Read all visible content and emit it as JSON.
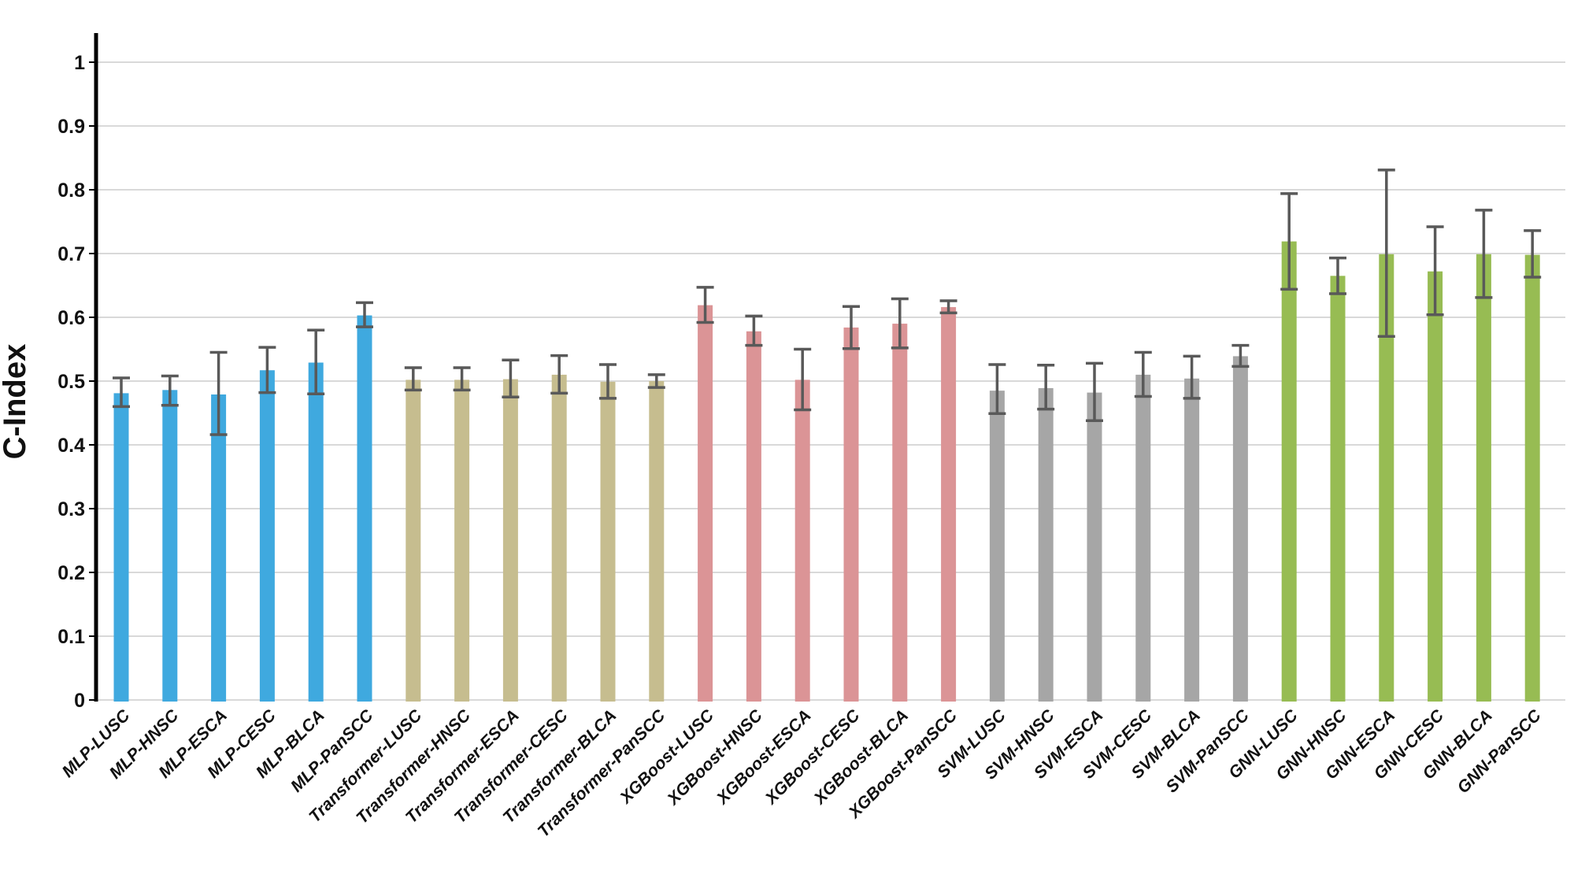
{
  "chart_data": {
    "type": "bar",
    "title": "",
    "ylabel": "C-Index",
    "xlabel": "",
    "ylim": [
      0,
      1.0
    ],
    "ytick_step": 0.1,
    "ytick_labels": [
      "0",
      "0.1",
      "0.2",
      "0.3",
      "0.4",
      "0.5",
      "0.6",
      "0.7",
      "0.8",
      "0.9",
      "1"
    ],
    "grid": true,
    "legend": "none",
    "error_bars": true,
    "colors": {
      "grid_line": "#d9d9d9",
      "axis_line": "#000000",
      "error_bar": "#595959",
      "label_text": "#111111"
    },
    "groups": [
      {
        "name": "MLP",
        "color": "#3fa9df",
        "bars": [
          {
            "label": "MLP-LUSC",
            "value": 0.481,
            "err_low": 0.46,
            "err_high": 0.505
          },
          {
            "label": "MLP-HNSC",
            "value": 0.486,
            "err_low": 0.462,
            "err_high": 0.508
          },
          {
            "label": "MLP-ESCA",
            "value": 0.479,
            "err_low": 0.416,
            "err_high": 0.545
          },
          {
            "label": "MLP-CESC",
            "value": 0.517,
            "err_low": 0.482,
            "err_high": 0.553
          },
          {
            "label": "MLP-BLCA",
            "value": 0.529,
            "err_low": 0.48,
            "err_high": 0.58
          },
          {
            "label": "MLP-PanSCC",
            "value": 0.603,
            "err_low": 0.585,
            "err_high": 0.623
          }
        ]
      },
      {
        "name": "Transformer",
        "color": "#c6bd8f",
        "bars": [
          {
            "label": "Transformer-LUSC",
            "value": 0.502,
            "err_low": 0.486,
            "err_high": 0.521
          },
          {
            "label": "Transformer-HNSC",
            "value": 0.502,
            "err_low": 0.486,
            "err_high": 0.521
          },
          {
            "label": "Transformer-ESCA",
            "value": 0.503,
            "err_low": 0.475,
            "err_high": 0.533
          },
          {
            "label": "Transformer-CESC",
            "value": 0.51,
            "err_low": 0.481,
            "err_high": 0.54
          },
          {
            "label": "Transformer-BLCA",
            "value": 0.499,
            "err_low": 0.473,
            "err_high": 0.526
          },
          {
            "label": "Transformer-PanSCC",
            "value": 0.5,
            "err_low": 0.49,
            "err_high": 0.51
          }
        ]
      },
      {
        "name": "XGBoost",
        "color": "#db9496",
        "bars": [
          {
            "label": "XGBoost-LUSC",
            "value": 0.619,
            "err_low": 0.592,
            "err_high": 0.647
          },
          {
            "label": "XGBoost-HNSC",
            "value": 0.578,
            "err_low": 0.556,
            "err_high": 0.602
          },
          {
            "label": "XGBoost-ESCA",
            "value": 0.502,
            "err_low": 0.455,
            "err_high": 0.55
          },
          {
            "label": "XGBoost-CESC",
            "value": 0.584,
            "err_low": 0.551,
            "err_high": 0.617
          },
          {
            "label": "XGBoost-BLCA",
            "value": 0.59,
            "err_low": 0.552,
            "err_high": 0.629
          },
          {
            "label": "XGBoost-PanSCC",
            "value": 0.616,
            "err_low": 0.607,
            "err_high": 0.626
          }
        ]
      },
      {
        "name": "SVM",
        "color": "#a6a6a6",
        "bars": [
          {
            "label": "SVM-LUSC",
            "value": 0.485,
            "err_low": 0.449,
            "err_high": 0.526
          },
          {
            "label": "SVM-HNSC",
            "value": 0.489,
            "err_low": 0.456,
            "err_high": 0.525
          },
          {
            "label": "SVM-ESCA",
            "value": 0.482,
            "err_low": 0.438,
            "err_high": 0.528
          },
          {
            "label": "SVM-CESC",
            "value": 0.51,
            "err_low": 0.476,
            "err_high": 0.545
          },
          {
            "label": "SVM-BLCA",
            "value": 0.504,
            "err_low": 0.473,
            "err_high": 0.539
          },
          {
            "label": "SVM-PanSCC",
            "value": 0.539,
            "err_low": 0.523,
            "err_high": 0.556
          }
        ]
      },
      {
        "name": "GNN",
        "color": "#97bc53",
        "bars": [
          {
            "label": "GNN-LUSC",
            "value": 0.719,
            "err_low": 0.644,
            "err_high": 0.794
          },
          {
            "label": "GNN-HNSC",
            "value": 0.665,
            "err_low": 0.637,
            "err_high": 0.693
          },
          {
            "label": "GNN-ESCA",
            "value": 0.699,
            "err_low": 0.57,
            "err_high": 0.831
          },
          {
            "label": "GNN-CESC",
            "value": 0.672,
            "err_low": 0.604,
            "err_high": 0.742
          },
          {
            "label": "GNN-BLCA",
            "value": 0.699,
            "err_low": 0.631,
            "err_high": 0.768
          },
          {
            "label": "GNN-PanSCC",
            "value": 0.698,
            "err_low": 0.663,
            "err_high": 0.736
          }
        ]
      }
    ]
  }
}
